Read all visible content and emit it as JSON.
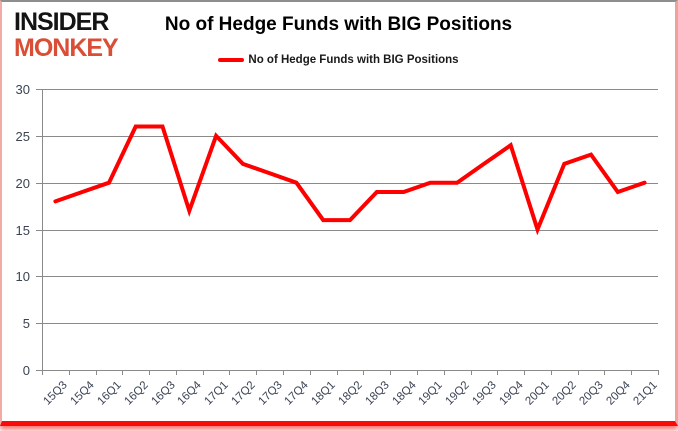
{
  "logo": {
    "line1": "INSIDER",
    "line2": "MONKEY"
  },
  "header": {
    "title": "No of Hedge Funds with BIG Positions"
  },
  "legend": {
    "label": "No of Hedge Funds with BIG Positions"
  },
  "colors": {
    "line": "#fe0000",
    "gridline": "#8a8a8a",
    "axis_label": "#3b4354",
    "logo_primary": "#141414",
    "logo_accent": "#d94e35",
    "frame_bottom_bar": "#fb0a0a"
  },
  "chart_data": {
    "type": "line",
    "title": "No of Hedge Funds with BIG Positions",
    "series_name": "No of Hedge Funds with BIG Positions",
    "categories": [
      "15Q3",
      "15Q4",
      "16Q1",
      "16Q2",
      "16Q3",
      "16Q4",
      "17Q1",
      "17Q2",
      "17Q3",
      "17Q4",
      "18Q1",
      "18Q2",
      "18Q3",
      "18Q4",
      "19Q1",
      "19Q2",
      "19Q3",
      "19Q4",
      "20Q1",
      "20Q2",
      "20Q3",
      "20Q4",
      "21Q1"
    ],
    "values": [
      18,
      19,
      20,
      26,
      26,
      17,
      25,
      22,
      21,
      20,
      16,
      16,
      19,
      19,
      20,
      20,
      22,
      24,
      15,
      22,
      23,
      19,
      20
    ],
    "xlabel": "",
    "ylabel": "",
    "ylim": [
      0,
      30
    ],
    "ytick_step": 5,
    "yticks": [
      0,
      5,
      10,
      15,
      20,
      25,
      30
    ],
    "grid": true,
    "legend_position": "top-center",
    "x_label_rotation_deg": -45
  }
}
